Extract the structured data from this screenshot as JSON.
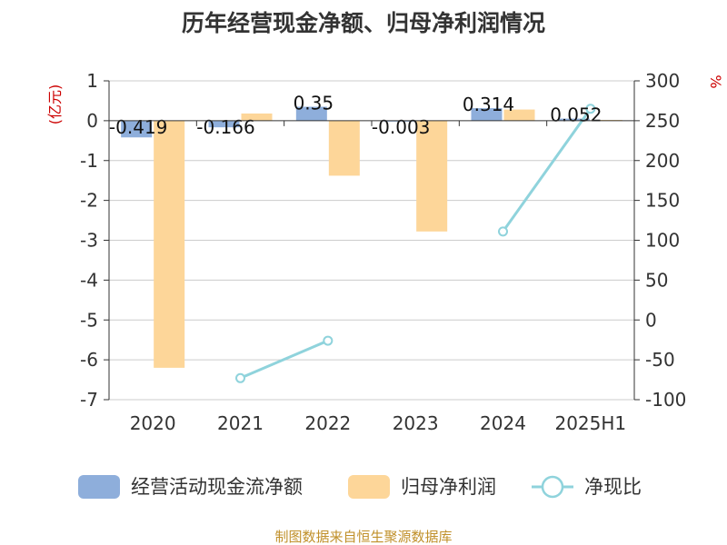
{
  "chart_data": {
    "type": "bar",
    "title": "历年经营现金净额、归母净利润情况",
    "categories": [
      "2020",
      "2021",
      "2022",
      "2023",
      "2024",
      "2025H1"
    ],
    "y_left": {
      "unit_label": "(亿元)",
      "range": [
        -7,
        1
      ],
      "ticks": [
        1,
        0,
        -1,
        -2,
        -3,
        -4,
        -5,
        -6,
        -7
      ]
    },
    "y_right": {
      "unit_label": "%",
      "range": [
        -100,
        300
      ],
      "ticks": [
        300,
        250,
        200,
        150,
        100,
        50,
        0,
        -50,
        -100
      ]
    },
    "series": [
      {
        "name": "经营活动现金流净额",
        "type": "bar",
        "axis": "left",
        "color": "#8eaedb",
        "values": [
          -0.419,
          -0.166,
          0.35,
          -0.003,
          0.314,
          0.052
        ],
        "labels": [
          "-0.419",
          "-0.166",
          "0.35",
          "-0.003",
          "0.314",
          "0.052"
        ]
      },
      {
        "name": "归母净利润",
        "type": "bar",
        "axis": "left",
        "color": "#fdd699",
        "values": [
          -6.2,
          0.18,
          -1.38,
          -2.78,
          0.28,
          0.02
        ]
      },
      {
        "name": "净现比",
        "type": "line",
        "axis": "right",
        "color": "#8fd3dc",
        "values": [
          null,
          -73,
          -26,
          null,
          111,
          265
        ]
      }
    ],
    "legend_position": "bottom",
    "grid": true
  },
  "footer": {
    "source": "制图数据来自恒生聚源数据库"
  }
}
